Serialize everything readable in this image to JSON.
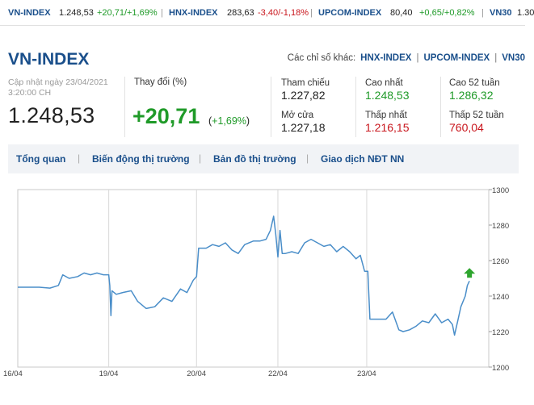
{
  "ticker": [
    {
      "name": "VN-INDEX",
      "value": "1.248,53",
      "change": "+20,71/+1,69%",
      "dir": "up"
    },
    {
      "name": "HNX-INDEX",
      "value": "283,63",
      "change": "-3,40/-1,18%",
      "dir": "down"
    },
    {
      "name": "UPCOM-INDEX",
      "value": "80,40",
      "change": "+0,65/+0,82%",
      "dir": "up"
    },
    {
      "name": "VN30",
      "value": "1.30",
      "change": "",
      "dir": "up"
    }
  ],
  "header": {
    "title": "VN-INDEX",
    "other_label": "Các chỉ số khác:",
    "other_links": [
      "HNX-INDEX",
      "UPCOM-INDEX",
      "VN30"
    ]
  },
  "summary": {
    "updated_line1": "Cập nhật ngày 23/04/2021",
    "updated_line2": "3:20:00 CH",
    "value": "1.248,53",
    "change_label": "Thay đổi (%)",
    "change_value": "+20,71",
    "change_pct_open": "(",
    "change_pct": "+1,69%",
    "change_pct_close": ")",
    "stats": {
      "ref_label": "Tham chiếu",
      "ref_value": "1.227,82",
      "open_label": "Mở cửa",
      "open_value": "1.227,18",
      "high_label": "Cao nhất",
      "high_value": "1.248,53",
      "low_label": "Thấp nhất",
      "low_value": "1.216,15",
      "high52_label": "Cao 52 tuần",
      "high52_value": "1.286,32",
      "low52_label": "Thấp 52 tuần",
      "low52_value": "760,04"
    }
  },
  "tabs": [
    "Tổng quan",
    "Biến động thị trường",
    "Bản đồ thị trường",
    "Giao dịch NĐT NN"
  ],
  "colors": {
    "brand": "#1a4f8b",
    "up": "#1f9a28",
    "down": "#c9161d",
    "line": "#4a8ec9"
  },
  "chart_data": {
    "type": "line",
    "title": "",
    "xlabel": "",
    "ylabel": "",
    "x_ticks": [
      "16/04",
      "19/04",
      "20/04",
      "22/04",
      "23/04"
    ],
    "y_ticks": [
      1200,
      1220,
      1240,
      1260,
      1280,
      1300
    ],
    "ylim": [
      1200,
      1300
    ],
    "series": [
      {
        "values": [
          [
            0.0,
            1245
          ],
          [
            0.5,
            1245
          ],
          [
            1.0,
            1245
          ],
          [
            1.5,
            1244.5
          ],
          [
            1.9,
            1246
          ],
          [
            2.1,
            1252
          ],
          [
            2.4,
            1250
          ],
          [
            2.8,
            1251
          ],
          [
            3.1,
            1253
          ],
          [
            3.4,
            1252
          ],
          [
            3.7,
            1253
          ],
          [
            4.0,
            1252
          ],
          [
            4.25,
            1252
          ],
          [
            4.3,
            1246
          ],
          [
            4.35,
            1229
          ],
          [
            4.4,
            1243
          ],
          [
            4.6,
            1241
          ],
          [
            4.9,
            1242
          ],
          [
            5.3,
            1243
          ],
          [
            5.6,
            1237
          ],
          [
            6.0,
            1233
          ],
          [
            6.4,
            1234
          ],
          [
            6.8,
            1239
          ],
          [
            7.2,
            1237
          ],
          [
            7.6,
            1244
          ],
          [
            7.9,
            1242
          ],
          [
            8.2,
            1249
          ],
          [
            8.35,
            1251
          ],
          [
            8.45,
            1267
          ],
          [
            8.8,
            1267
          ],
          [
            9.1,
            1269
          ],
          [
            9.4,
            1268
          ],
          [
            9.7,
            1270
          ],
          [
            10.0,
            1266
          ],
          [
            10.3,
            1264
          ],
          [
            10.6,
            1269
          ],
          [
            11.0,
            1271
          ],
          [
            11.3,
            1271
          ],
          [
            11.6,
            1272
          ],
          [
            11.8,
            1277
          ],
          [
            11.95,
            1285
          ],
          [
            12.05,
            1275
          ],
          [
            12.15,
            1262
          ],
          [
            12.25,
            1277
          ],
          [
            12.35,
            1264
          ],
          [
            12.5,
            1264
          ],
          [
            12.8,
            1265
          ],
          [
            13.1,
            1264
          ],
          [
            13.4,
            1270
          ],
          [
            13.7,
            1272
          ],
          [
            14.0,
            1270
          ],
          [
            14.3,
            1268
          ],
          [
            14.6,
            1269
          ],
          [
            14.9,
            1265
          ],
          [
            15.2,
            1268
          ],
          [
            15.5,
            1265
          ],
          [
            15.8,
            1261
          ],
          [
            16.0,
            1263
          ],
          [
            16.2,
            1254
          ],
          [
            16.35,
            1254
          ],
          [
            16.45,
            1227
          ],
          [
            16.8,
            1227
          ],
          [
            17.2,
            1227
          ],
          [
            17.5,
            1231
          ],
          [
            17.8,
            1221
          ],
          [
            18.0,
            1220
          ],
          [
            18.3,
            1221
          ],
          [
            18.6,
            1223
          ],
          [
            18.9,
            1226
          ],
          [
            19.2,
            1225
          ],
          [
            19.5,
            1230
          ],
          [
            19.8,
            1225
          ],
          [
            20.1,
            1227
          ],
          [
            20.3,
            1224
          ],
          [
            20.4,
            1218
          ],
          [
            20.55,
            1226
          ],
          [
            20.7,
            1234
          ],
          [
            20.9,
            1240
          ],
          [
            21.0,
            1246
          ],
          [
            21.1,
            1248.5
          ]
        ]
      }
    ]
  }
}
